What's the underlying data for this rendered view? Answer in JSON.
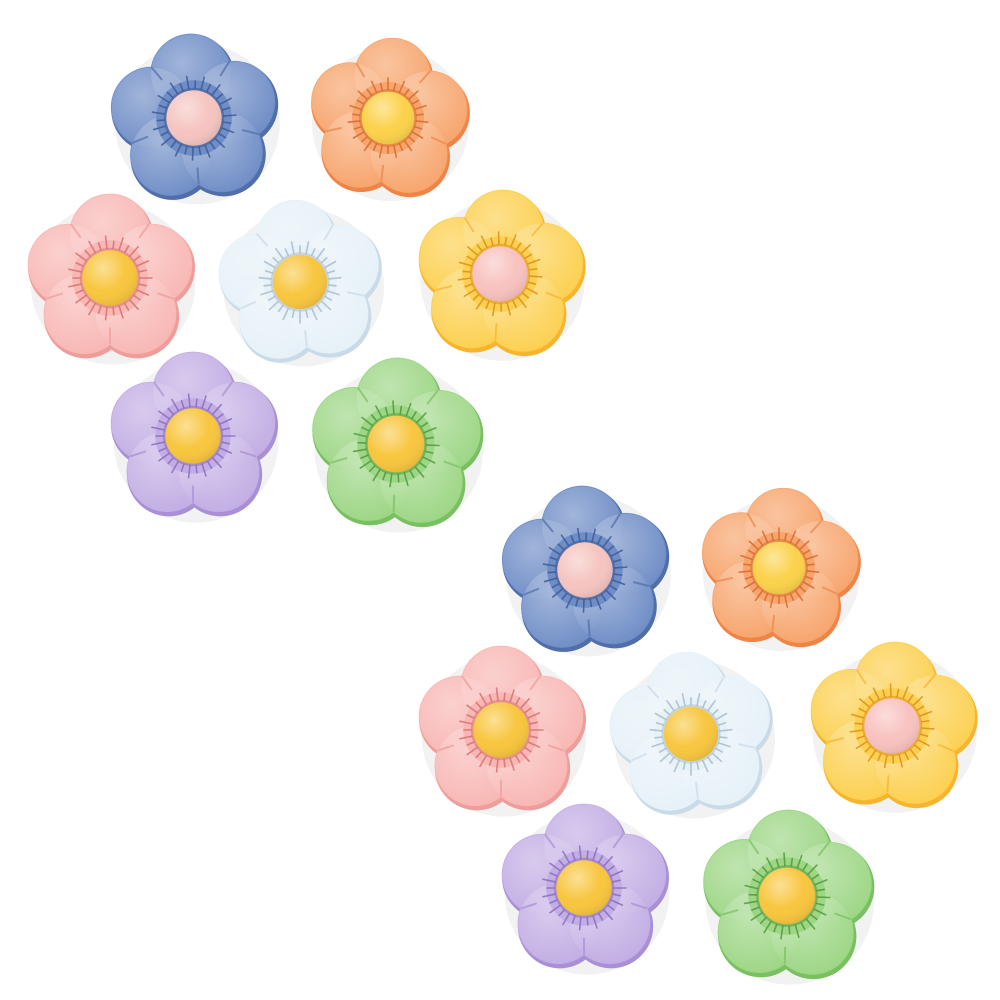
{
  "scene": {
    "background": "#ffffff",
    "groups": [
      {
        "name": "upper-left-set",
        "flowers": [
          {
            "name": "blue-flower",
            "petal": "#6f8dc6",
            "shade": "#4f6eaa",
            "line": "#3d5a96",
            "center": "#f5c4c0"
          },
          {
            "name": "orange-flower",
            "petal": "#f7a56d",
            "shade": "#ee8446",
            "line": "#d9692c",
            "center": "#fbd24a"
          },
          {
            "name": "pink-flower",
            "petal": "#f8b7b4",
            "shade": "#ee9d9a",
            "line": "#d8716f",
            "center": "#f8c63e"
          },
          {
            "name": "white-flower",
            "petal": "#e6f1f8",
            "shade": "#c9dbe8",
            "line": "#a9bccb",
            "center": "#f8c63e"
          },
          {
            "name": "yellow-flower",
            "petal": "#fcd050",
            "shade": "#f6b52d",
            "line": "#de8f1a",
            "center": "#f8c2c0"
          },
          {
            "name": "purple-flower",
            "petal": "#c2aee4",
            "shade": "#a98fd6",
            "line": "#8a6cbf",
            "center": "#f8c63e"
          },
          {
            "name": "green-flower",
            "petal": "#9dd685",
            "shade": "#79c061",
            "line": "#4f9a3a",
            "center": "#f8c63e"
          }
        ]
      },
      {
        "name": "lower-right-set",
        "flowers": [
          {
            "name": "blue-flower",
            "petal": "#6f8dc6",
            "shade": "#4f6eaa",
            "line": "#3d5a96",
            "center": "#f5c4c0"
          },
          {
            "name": "orange-flower",
            "petal": "#f7a56d",
            "shade": "#ee8446",
            "line": "#d9692c",
            "center": "#fbd24a"
          },
          {
            "name": "pink-flower",
            "petal": "#f8b7b4",
            "shade": "#ee9d9a",
            "line": "#d8716f",
            "center": "#f8c63e"
          },
          {
            "name": "white-flower",
            "petal": "#e6f1f8",
            "shade": "#c9dbe8",
            "line": "#a9bccb",
            "center": "#f8c63e"
          },
          {
            "name": "yellow-flower",
            "petal": "#fcd050",
            "shade": "#f6b52d",
            "line": "#de8f1a",
            "center": "#f8c2c0"
          },
          {
            "name": "purple-flower",
            "petal": "#c2aee4",
            "shade": "#a98fd6",
            "line": "#8a6cbf",
            "center": "#f8c63e"
          },
          {
            "name": "green-flower",
            "petal": "#9dd685",
            "shade": "#79c061",
            "line": "#4f9a3a",
            "center": "#f8c63e"
          }
        ]
      }
    ]
  }
}
